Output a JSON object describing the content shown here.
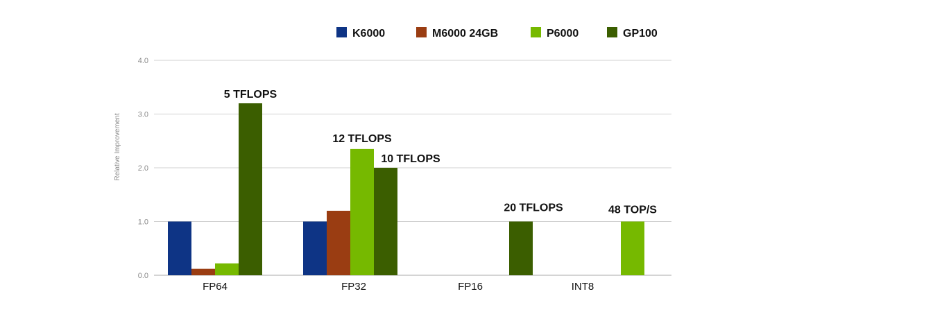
{
  "chart_data": {
    "type": "bar",
    "title": "",
    "xlabel": "",
    "ylabel": "Relative Improvement",
    "ylim": [
      0,
      4
    ],
    "yticks": [
      0,
      1,
      2,
      3,
      4
    ],
    "ytick_labels": [
      "0.0",
      "1.0",
      "2.0",
      "3.0",
      "4.0"
    ],
    "grid": true,
    "legend_position": "top",
    "categories": [
      "FP64",
      "FP32",
      "FP16",
      "INT8"
    ],
    "series": [
      {
        "name": "K6000",
        "color": "#0e3485",
        "values": [
          1.0,
          1.0,
          null,
          null
        ]
      },
      {
        "name": "M6000 24GB",
        "color": "#9a3d12",
        "values": [
          0.12,
          1.2,
          null,
          null
        ]
      },
      {
        "name": "P6000",
        "color": "#76b900",
        "values": [
          0.22,
          2.35,
          null,
          1.0
        ]
      },
      {
        "name": "GP100",
        "color": "#3b5e00",
        "values": [
          3.2,
          2.0,
          1.0,
          null
        ]
      }
    ],
    "annotations": [
      {
        "text": "5 TFLOPS",
        "category": "FP64",
        "series": "GP100"
      },
      {
        "text": "12 TFLOPS",
        "category": "FP32",
        "series": "P6000"
      },
      {
        "text": "10 TFLOPS",
        "category": "FP32",
        "series": "GP100"
      },
      {
        "text": "20 TFLOPS",
        "category": "FP16",
        "series": "GP100"
      },
      {
        "text": "48 TOP/S",
        "category": "INT8",
        "series": "P6000"
      }
    ]
  }
}
